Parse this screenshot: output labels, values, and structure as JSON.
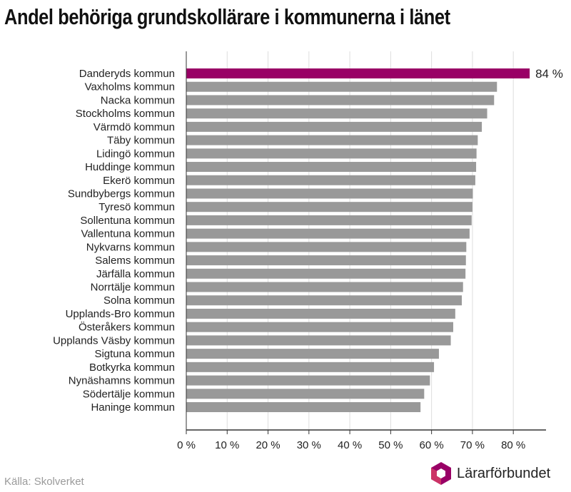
{
  "title": "Andel behöriga grundskollärare i kommunerna i länet",
  "source": "Källa: Skolverket",
  "brand": "Lärarförbundet",
  "colors": {
    "highlight": "#990066",
    "bar": "#999999",
    "grid": "#dddddd",
    "axis": "#333333",
    "logo_primary": "#990066",
    "logo_secondary": "#cc3366"
  },
  "chart_data": {
    "type": "bar",
    "orientation": "horizontal",
    "categories": [
      "Danderyds kommun",
      "Vaxholms kommun",
      "Nacka kommun",
      "Stockholms kommun",
      "Värmdö kommun",
      "Täby kommun",
      "Lidingö kommun",
      "Huddinge kommun",
      "Ekerö kommun",
      "Sundbybergs kommun",
      "Tyresö kommun",
      "Sollentuna kommun",
      "Vallentuna kommun",
      "Nykvarns kommun",
      "Salems kommun",
      "Järfälla kommun",
      "Norrtälje kommun",
      "Solna kommun",
      "Upplands-Bro kommun",
      "Österåkers kommun",
      "Upplands Väsby kommun",
      "Sigtuna kommun",
      "Botkyrka kommun",
      "Nynäshamns kommun",
      "Södertälje kommun",
      "Haninge kommun"
    ],
    "values": [
      84,
      76,
      75.3,
      73.6,
      72.3,
      71.3,
      71,
      70.9,
      70.7,
      70.1,
      70,
      69.8,
      69.3,
      68.5,
      68.4,
      68.3,
      67.7,
      67.4,
      65.8,
      65.3,
      64.7,
      61.8,
      60.6,
      59.6,
      58.2,
      57.3
    ],
    "highlight_index": 0,
    "value_label": "84 %",
    "xlim": [
      0,
      88
    ],
    "xticks": [
      0,
      10,
      20,
      30,
      40,
      50,
      60,
      70,
      80
    ],
    "xtick_labels": [
      "0 %",
      "10 %",
      "20 %",
      "30 %",
      "40 %",
      "50 %",
      "60 %",
      "70 %",
      "80 %"
    ],
    "grid": true,
    "legend": "none",
    "xlabel": "",
    "ylabel": ""
  }
}
